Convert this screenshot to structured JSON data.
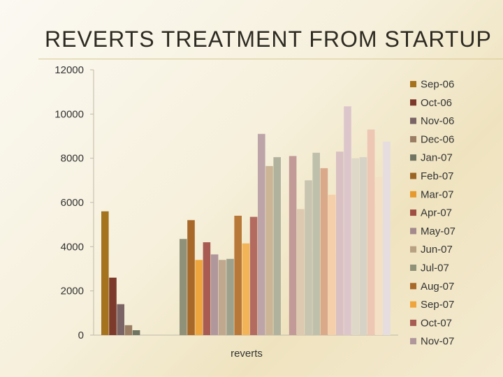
{
  "slide": {
    "title": "REVERTS TREATMENT FROM STARTUP"
  },
  "chart_data": {
    "type": "bar",
    "title": "",
    "xlabel": "",
    "ylabel": "",
    "categories": [
      "reverts"
    ],
    "ylim": [
      0,
      12000
    ],
    "yticks": [
      "0",
      "2000",
      "4000",
      "6000",
      "8000",
      "10000",
      "12000"
    ],
    "grid": false,
    "legend_position": "right",
    "series": [
      {
        "name": "Sep-06",
        "color": "#a5721e",
        "values": [
          5600
        ]
      },
      {
        "name": "Oct-06",
        "color": "#7c3a2c",
        "values": [
          2600
        ]
      },
      {
        "name": "Nov-06",
        "color": "#7b6466",
        "values": [
          1400
        ]
      },
      {
        "name": "Dec-06",
        "color": "#9a7d63",
        "values": [
          450
        ]
      },
      {
        "name": "Jan-07",
        "color": "#6f7561",
        "values": [
          220
        ]
      },
      {
        "name": "Feb-07",
        "color": "#9b6526",
        "values": [
          0
        ]
      },
      {
        "name": "Mar-07",
        "color": "#e6992f",
        "values": [
          0
        ]
      },
      {
        "name": "Apr-07",
        "color": "#9f4e44",
        "values": [
          0
        ]
      },
      {
        "name": "May-07",
        "color": "#a48a8d",
        "values": [
          0
        ]
      },
      {
        "name": "Jun-07",
        "color": "#b8a083",
        "values": [
          0
        ]
      },
      {
        "name": "Jul-07",
        "color": "#8f9179",
        "values": [
          4350
        ]
      },
      {
        "name": "Aug-07",
        "color": "#a8682a",
        "values": [
          5200
        ]
      },
      {
        "name": "Sep-07",
        "color": "#efa53d",
        "values": [
          3400
        ]
      },
      {
        "name": "Oct-07",
        "color": "#a75b52",
        "values": [
          4200
        ]
      },
      {
        "name": "Nov-07",
        "color": "#b0979b",
        "values": [
          3650
        ]
      },
      {
        "name": "",
        "color": "#bfa88e",
        "values": [
          3400
        ]
      },
      {
        "name": "",
        "color": "#9ea28c",
        "values": [
          3450
        ]
      },
      {
        "name": "",
        "color": "#b87838",
        "values": [
          5400
        ]
      },
      {
        "name": "",
        "color": "#f2b456",
        "values": [
          4150
        ]
      },
      {
        "name": "",
        "color": "#b36b60",
        "values": [
          5350
        ]
      },
      {
        "name": "",
        "color": "#bca4a8",
        "values": [
          9100
        ]
      },
      {
        "name": "",
        "color": "#cbb596",
        "values": [
          7650
        ]
      },
      {
        "name": "",
        "color": "#b1b29d",
        "values": [
          8050
        ]
      },
      {
        "name": "",
        "color": "#d6c3a6",
        "values": [
          0
        ]
      },
      {
        "name": "",
        "color": "#c29a97",
        "values": [
          8100
        ]
      },
      {
        "name": "",
        "color": "#dcc9b0",
        "values": [
          5700
        ]
      },
      {
        "name": "",
        "color": "#c7c4af",
        "values": [
          7000
        ]
      },
      {
        "name": "",
        "color": "#bfc0ab",
        "values": [
          8250
        ]
      },
      {
        "name": "",
        "color": "#d9a98a",
        "values": [
          7550
        ]
      },
      {
        "name": "",
        "color": "#f5ceaa",
        "values": [
          6350
        ]
      },
      {
        "name": "",
        "color": "#d9c0c2",
        "values": [
          8300
        ]
      },
      {
        "name": "",
        "color": "#dcc6cc",
        "values": [
          10350
        ]
      },
      {
        "name": "",
        "color": "#ddd8c8",
        "values": [
          8000
        ]
      },
      {
        "name": "",
        "color": "#d6d3c6",
        "values": [
          8050
        ]
      },
      {
        "name": "",
        "color": "#edc6b4",
        "values": [
          9300
        ]
      },
      {
        "name": "",
        "color": "#f4e0c4",
        "values": [
          7150
        ]
      },
      {
        "name": "",
        "color": "#e5dde0",
        "values": [
          8750
        ]
      }
    ]
  }
}
